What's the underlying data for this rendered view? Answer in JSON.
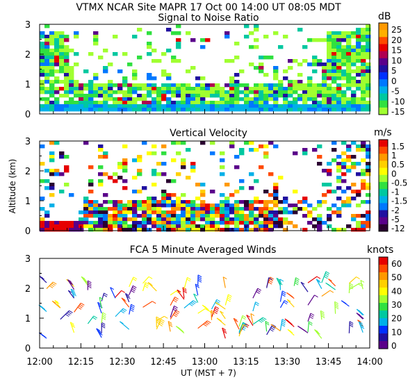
{
  "header": {
    "title_line": "VTMX   NCAR Site   MAPR 17 Oct 00   14:00 UT   08:05   MDT"
  },
  "chart_data": [
    {
      "id": "snr",
      "type": "heatmap",
      "title": "Signal to Noise Ratio",
      "unit": "dB",
      "ylabel": "",
      "ylim": [
        0,
        3
      ],
      "yticks": [
        "0",
        "1",
        "2",
        "3"
      ],
      "colorbar": {
        "labels": [
          "25",
          "20",
          "15",
          "10",
          "5",
          "0",
          "-5",
          "-10",
          "-15"
        ],
        "colors": [
          "#ff9900",
          "#ffb000",
          "#ff4a00",
          "#e60000",
          "#b00050",
          "#5a008a",
          "#2010a0",
          "#0030ff",
          "#0078ff",
          "#00b0e8",
          "#00c8a0",
          "#30e040",
          "#a0ff30"
        ]
      }
    },
    {
      "id": "vv",
      "type": "heatmap",
      "title": "Vertical Velocity",
      "unit": "m/s",
      "ylabel": "Altitude (km)",
      "ylim": [
        0,
        3
      ],
      "yticks": [
        "0",
        "1",
        "2",
        "3"
      ],
      "colorbar": {
        "labels": [
          "1.5",
          "1",
          "0.5",
          "0",
          "-0.5",
          "-1",
          "-1.5",
          "-2",
          "-5",
          "-12"
        ],
        "colors": [
          "#e60000",
          "#ff4a00",
          "#ff9900",
          "#ffd000",
          "#ffff00",
          "#a0ff30",
          "#30e040",
          "#00c8a0",
          "#00b0e8",
          "#0078ff",
          "#2010a0",
          "#5a008a",
          "#2a0030"
        ]
      }
    },
    {
      "id": "winds",
      "type": "scatter",
      "title": "FCA 5 Minute Averaged Winds",
      "unit": "knots",
      "ylabel": "",
      "ylim": [
        0,
        3
      ],
      "yticks": [
        "0",
        "1",
        "2",
        "3"
      ],
      "colorbar": {
        "labels": [
          "60",
          "50",
          "40",
          "30",
          "20",
          "10",
          "0"
        ],
        "colors": [
          "#e60000",
          "#ff4a00",
          "#ff9900",
          "#ffd000",
          "#ffff00",
          "#a0ff30",
          "#30e040",
          "#00c8a0",
          "#00b0e8",
          "#0030ff",
          "#2010a0",
          "#5a008a"
        ]
      },
      "profile_times_min": [
        0,
        5,
        10,
        15,
        20,
        25,
        30,
        35,
        40,
        45,
        50,
        55,
        60,
        65,
        70,
        75,
        80,
        85,
        90,
        95,
        100,
        105,
        110,
        115
      ]
    }
  ],
  "x_axis": {
    "ticks": [
      "12:00",
      "12:15",
      "12:30",
      "12:45",
      "13:00",
      "13:15",
      "13:30",
      "13:45",
      "14:00"
    ],
    "xlabel": "UT   (MST + 7)",
    "range_min": [
      0,
      120
    ]
  }
}
